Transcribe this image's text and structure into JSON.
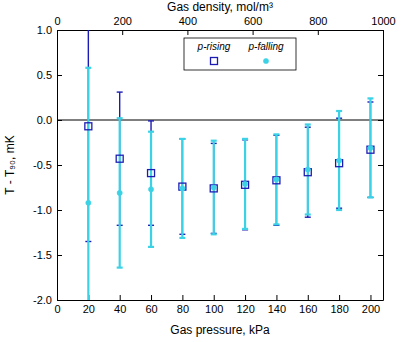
{
  "chart_data": {
    "type": "scatter",
    "xlabel": "Gas pressure, kPa",
    "x2label": "Gas density, mol/m³",
    "ylabel": "T - T₉₀, mK",
    "x": [
      20,
      40,
      60,
      80,
      100,
      120,
      140,
      160,
      180,
      200
    ],
    "xlim": [
      0,
      208
    ],
    "xticks": [
      0,
      20,
      40,
      60,
      80,
      100,
      120,
      140,
      160,
      180,
      200
    ],
    "x2lim": [
      0,
      1000
    ],
    "x2ticks": [
      0,
      200,
      400,
      600,
      800,
      1000
    ],
    "ylim": [
      -2.0,
      1.0
    ],
    "yticks": [
      {
        "value": -2.0,
        "label": "-2.0"
      },
      {
        "value": -1.5,
        "label": "-1.5"
      },
      {
        "value": -1.0,
        "label": "-1.0"
      },
      {
        "value": -0.5,
        "label": "-0.5"
      },
      {
        "value": 0,
        "label": "0.0"
      },
      {
        "value": 0.5,
        "label": "0.5"
      },
      {
        "value": 1.0,
        "label": "1.0"
      }
    ],
    "legend": "top",
    "series": [
      {
        "name": "p-rising",
        "color": "#1c1cb4",
        "marker": "square",
        "values": [
          -0.07,
          -0.43,
          -0.59,
          -0.74,
          -0.76,
          -0.72,
          -0.67,
          -0.58,
          -0.48,
          -0.33
        ],
        "errors": [
          1.28,
          0.74,
          0.58,
          0.53,
          0.5,
          0.5,
          0.5,
          0.5,
          0.5,
          0.53
        ]
      },
      {
        "name": "p-falling",
        "color": "#3cd2e6",
        "marker": "circle",
        "values": [
          -0.92,
          -0.81,
          -0.77,
          -0.76,
          -0.75,
          -0.71,
          -0.66,
          -0.55,
          -0.45,
          -0.31
        ],
        "errors": [
          1.5,
          0.83,
          0.64,
          0.55,
          0.52,
          0.5,
          0.5,
          0.5,
          0.55,
          0.55
        ]
      }
    ]
  }
}
